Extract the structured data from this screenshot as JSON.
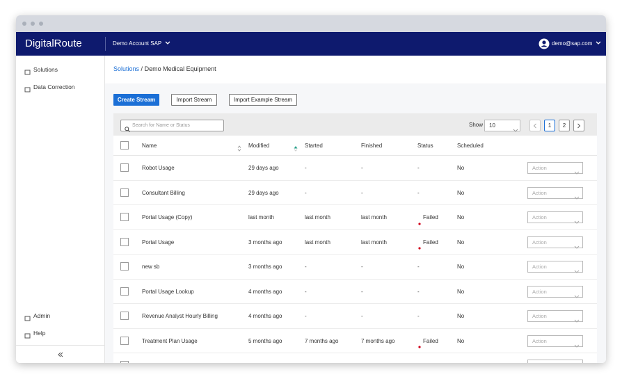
{
  "header": {
    "brand": "DigitalRoute",
    "account": "Demo Account SAP",
    "user": "demo@sap.com"
  },
  "sidebar": {
    "top": [
      "Solutions",
      "Data Correction"
    ],
    "bottom": [
      "Admin",
      "Help"
    ]
  },
  "breadcrumb": {
    "link": "Solutions",
    "separator": "/",
    "current": "Demo Medical Equipment"
  },
  "buttons": [
    "Create Stream",
    "Import Stream",
    "Import Example Stream"
  ],
  "toolbar": {
    "search_placeholder": "Search for Name or Status",
    "show_label": "Show",
    "page_size": "10",
    "pages": [
      "1",
      "2"
    ]
  },
  "table": {
    "columns": [
      "Name",
      "Modified",
      "Started",
      "Finished",
      "Status",
      "Scheduled"
    ],
    "status_colors": {
      "Failed": "#d0021b"
    },
    "action_placeholder": "Action",
    "rows": [
      [
        "Robot Usage",
        "29 days ago",
        "-",
        "-",
        "-",
        "No"
      ],
      [
        "Consultant Billing",
        "29 days ago",
        "-",
        "-",
        "-",
        "No"
      ],
      [
        "Portal Usage (Copy)",
        "last month",
        "last month",
        "last month",
        "Failed",
        "No"
      ],
      [
        "Portal Usage",
        "3 months ago",
        "last month",
        "last month",
        "Failed",
        "No"
      ],
      [
        "new sb",
        "3 months ago",
        "-",
        "-",
        "-",
        "No"
      ],
      [
        "Portal Usage Lookup",
        "4 months ago",
        "-",
        "-",
        "-",
        "No"
      ],
      [
        "Revenue Analyst Hourly Billing",
        "4 months ago",
        "-",
        "-",
        "-",
        "No"
      ],
      [
        "Treatment Plan Usage",
        "5 months ago",
        "7 months ago",
        "7 months ago",
        "Failed",
        "No"
      ]
    ]
  }
}
